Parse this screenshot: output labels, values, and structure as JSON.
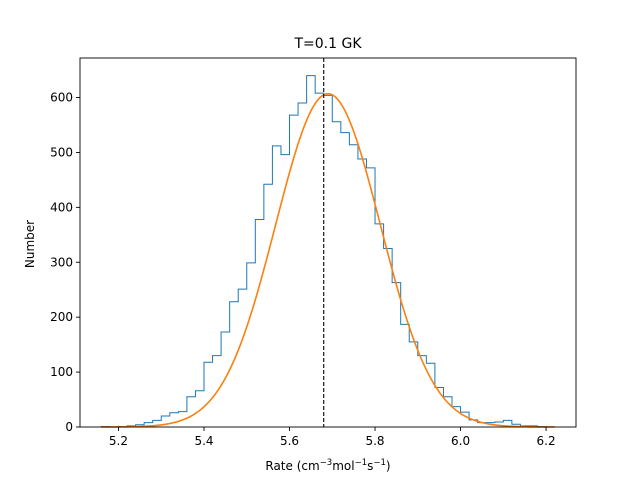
{
  "chart_data": {
    "type": "bar",
    "title": "T=0.1 GK",
    "xlabel": {
      "base": "Rate (cm",
      "sup1": "−3",
      "mid": "mol",
      "sup2": "−1",
      "mid2": "s",
      "sup3": "−1",
      "end": ")"
    },
    "ylabel": "Number",
    "xlim": [
      5.11,
      6.27
    ],
    "ylim": [
      0,
      672
    ],
    "x_ticks": [
      5.2,
      5.4,
      5.6,
      5.8,
      6.0,
      6.2
    ],
    "x_tick_labels": [
      "5.2",
      "5.4",
      "5.6",
      "5.8",
      "6.0",
      "6.2"
    ],
    "y_ticks": [
      0,
      100,
      200,
      300,
      400,
      500,
      600
    ],
    "y_tick_labels": [
      "0",
      "100",
      "200",
      "300",
      "400",
      "500",
      "600"
    ],
    "histogram": {
      "bin_edges": [
        5.16,
        5.18,
        5.2,
        5.22,
        5.24,
        5.26,
        5.28,
        5.3,
        5.32,
        5.34,
        5.36,
        5.38,
        5.4,
        5.42,
        5.44,
        5.46,
        5.48,
        5.5,
        5.52,
        5.54,
        5.56,
        5.58,
        5.6,
        5.62,
        5.64,
        5.66,
        5.68,
        5.7,
        5.72,
        5.74,
        5.76,
        5.78,
        5.8,
        5.82,
        5.84,
        5.86,
        5.88,
        5.9,
        5.92,
        5.94,
        5.96,
        5.98,
        6.0,
        6.02,
        6.04,
        6.06,
        6.08,
        6.1,
        6.12,
        6.14,
        6.16,
        6.18,
        6.2,
        6.22
      ],
      "counts": [
        1,
        0,
        1,
        2,
        4,
        8,
        12,
        20,
        26,
        28,
        55,
        66,
        118,
        130,
        173,
        228,
        251,
        299,
        378,
        442,
        512,
        496,
        568,
        590,
        640,
        608,
        604,
        556,
        536,
        514,
        488,
        472,
        370,
        325,
        263,
        187,
        155,
        130,
        116,
        72,
        55,
        37,
        27,
        13,
        8,
        8,
        9,
        12,
        5,
        2,
        2,
        1,
        0
      ],
      "color": "#1f77b4"
    },
    "fit_curve": {
      "type": "gaussian",
      "amplitude": 607,
      "mean": 5.69,
      "sigma": 0.1225,
      "x_range": [
        5.16,
        6.22
      ],
      "color": "#ff7f0e"
    },
    "reference_line": {
      "x": 5.68,
      "style": "dashed",
      "color": "#000000"
    },
    "grid": false,
    "legend": "none"
  }
}
